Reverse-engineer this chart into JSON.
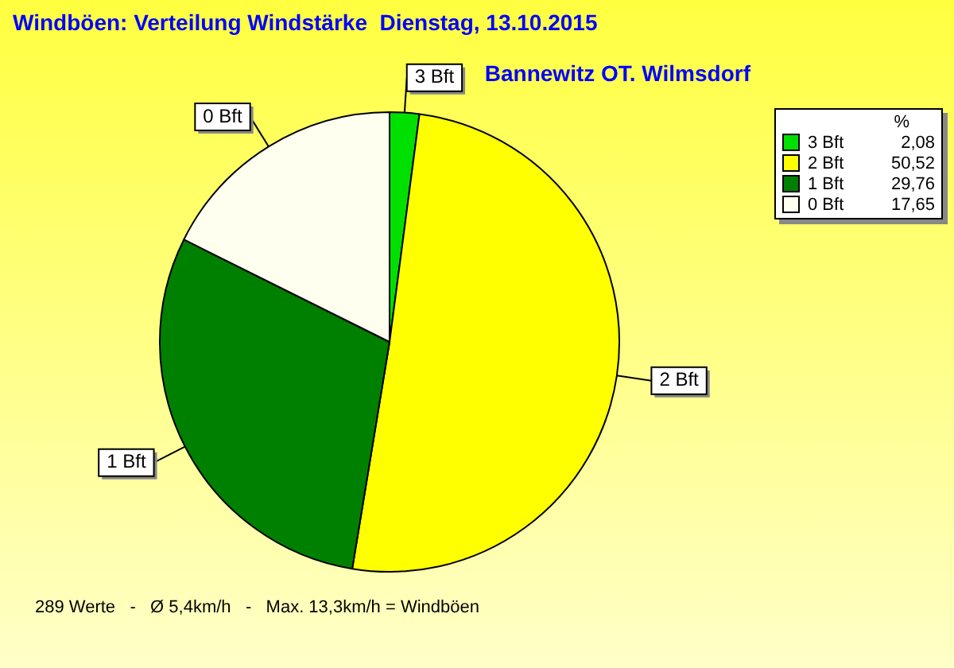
{
  "chart_data": {
    "type": "pie",
    "title": "Windböen: Verteilung Windstärke  Dienstag, 13.10.2015",
    "subtitle": "Bannewitz OT. Wilmsdorf",
    "legend_title": "%",
    "legend": "top right",
    "categories": [
      "3 Bft",
      "2 Bft",
      "1 Bft",
      "0 Bft"
    ],
    "values": [
      2.08,
      50.52,
      29.76,
      17.65
    ],
    "value_labels": [
      "2,08",
      "50,52",
      "29,76",
      "17,65"
    ],
    "colors": [
      "#00e000",
      "#ffff00",
      "#008000",
      "#fffff0"
    ],
    "annotations": [
      "289 Werte   -   Ø 5,4km/h   -   Max. 13,3km/h = Windböen"
    ]
  }
}
